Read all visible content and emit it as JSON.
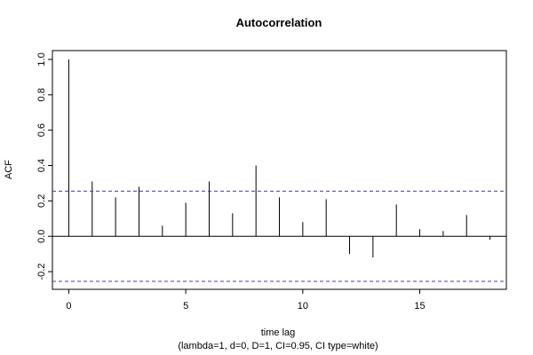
{
  "chart_data": {
    "type": "bar",
    "title": "Autocorrelation",
    "xlabel": "time lag",
    "subtitle": "(lambda=1, d=0, D=1, CI=0.95, CI type=white)",
    "ylabel": "ACF",
    "x": [
      0,
      1,
      2,
      3,
      4,
      5,
      6,
      7,
      8,
      9,
      10,
      11,
      12,
      13,
      14,
      15,
      16,
      17,
      18
    ],
    "values": [
      1.0,
      0.31,
      0.22,
      0.28,
      0.06,
      0.19,
      0.31,
      0.13,
      0.4,
      0.22,
      0.08,
      0.21,
      -0.1,
      -0.12,
      0.18,
      0.04,
      0.03,
      0.12,
      -0.02
    ],
    "confidence_limits": [
      0.255,
      -0.255
    ],
    "xlim": [
      -0.7,
      18.7
    ],
    "ylim": [
      -0.3,
      1.05
    ],
    "x_ticks": [
      "0",
      "5",
      "10",
      "15"
    ],
    "y_ticks": [
      "-0.2",
      "0.0",
      "0.2",
      "0.4",
      "0.6",
      "0.8",
      "1.0"
    ],
    "grid": false,
    "colors": {
      "bars": "#000000",
      "ci_lines": "#3a3ae0",
      "zero_line": "#000000"
    }
  }
}
